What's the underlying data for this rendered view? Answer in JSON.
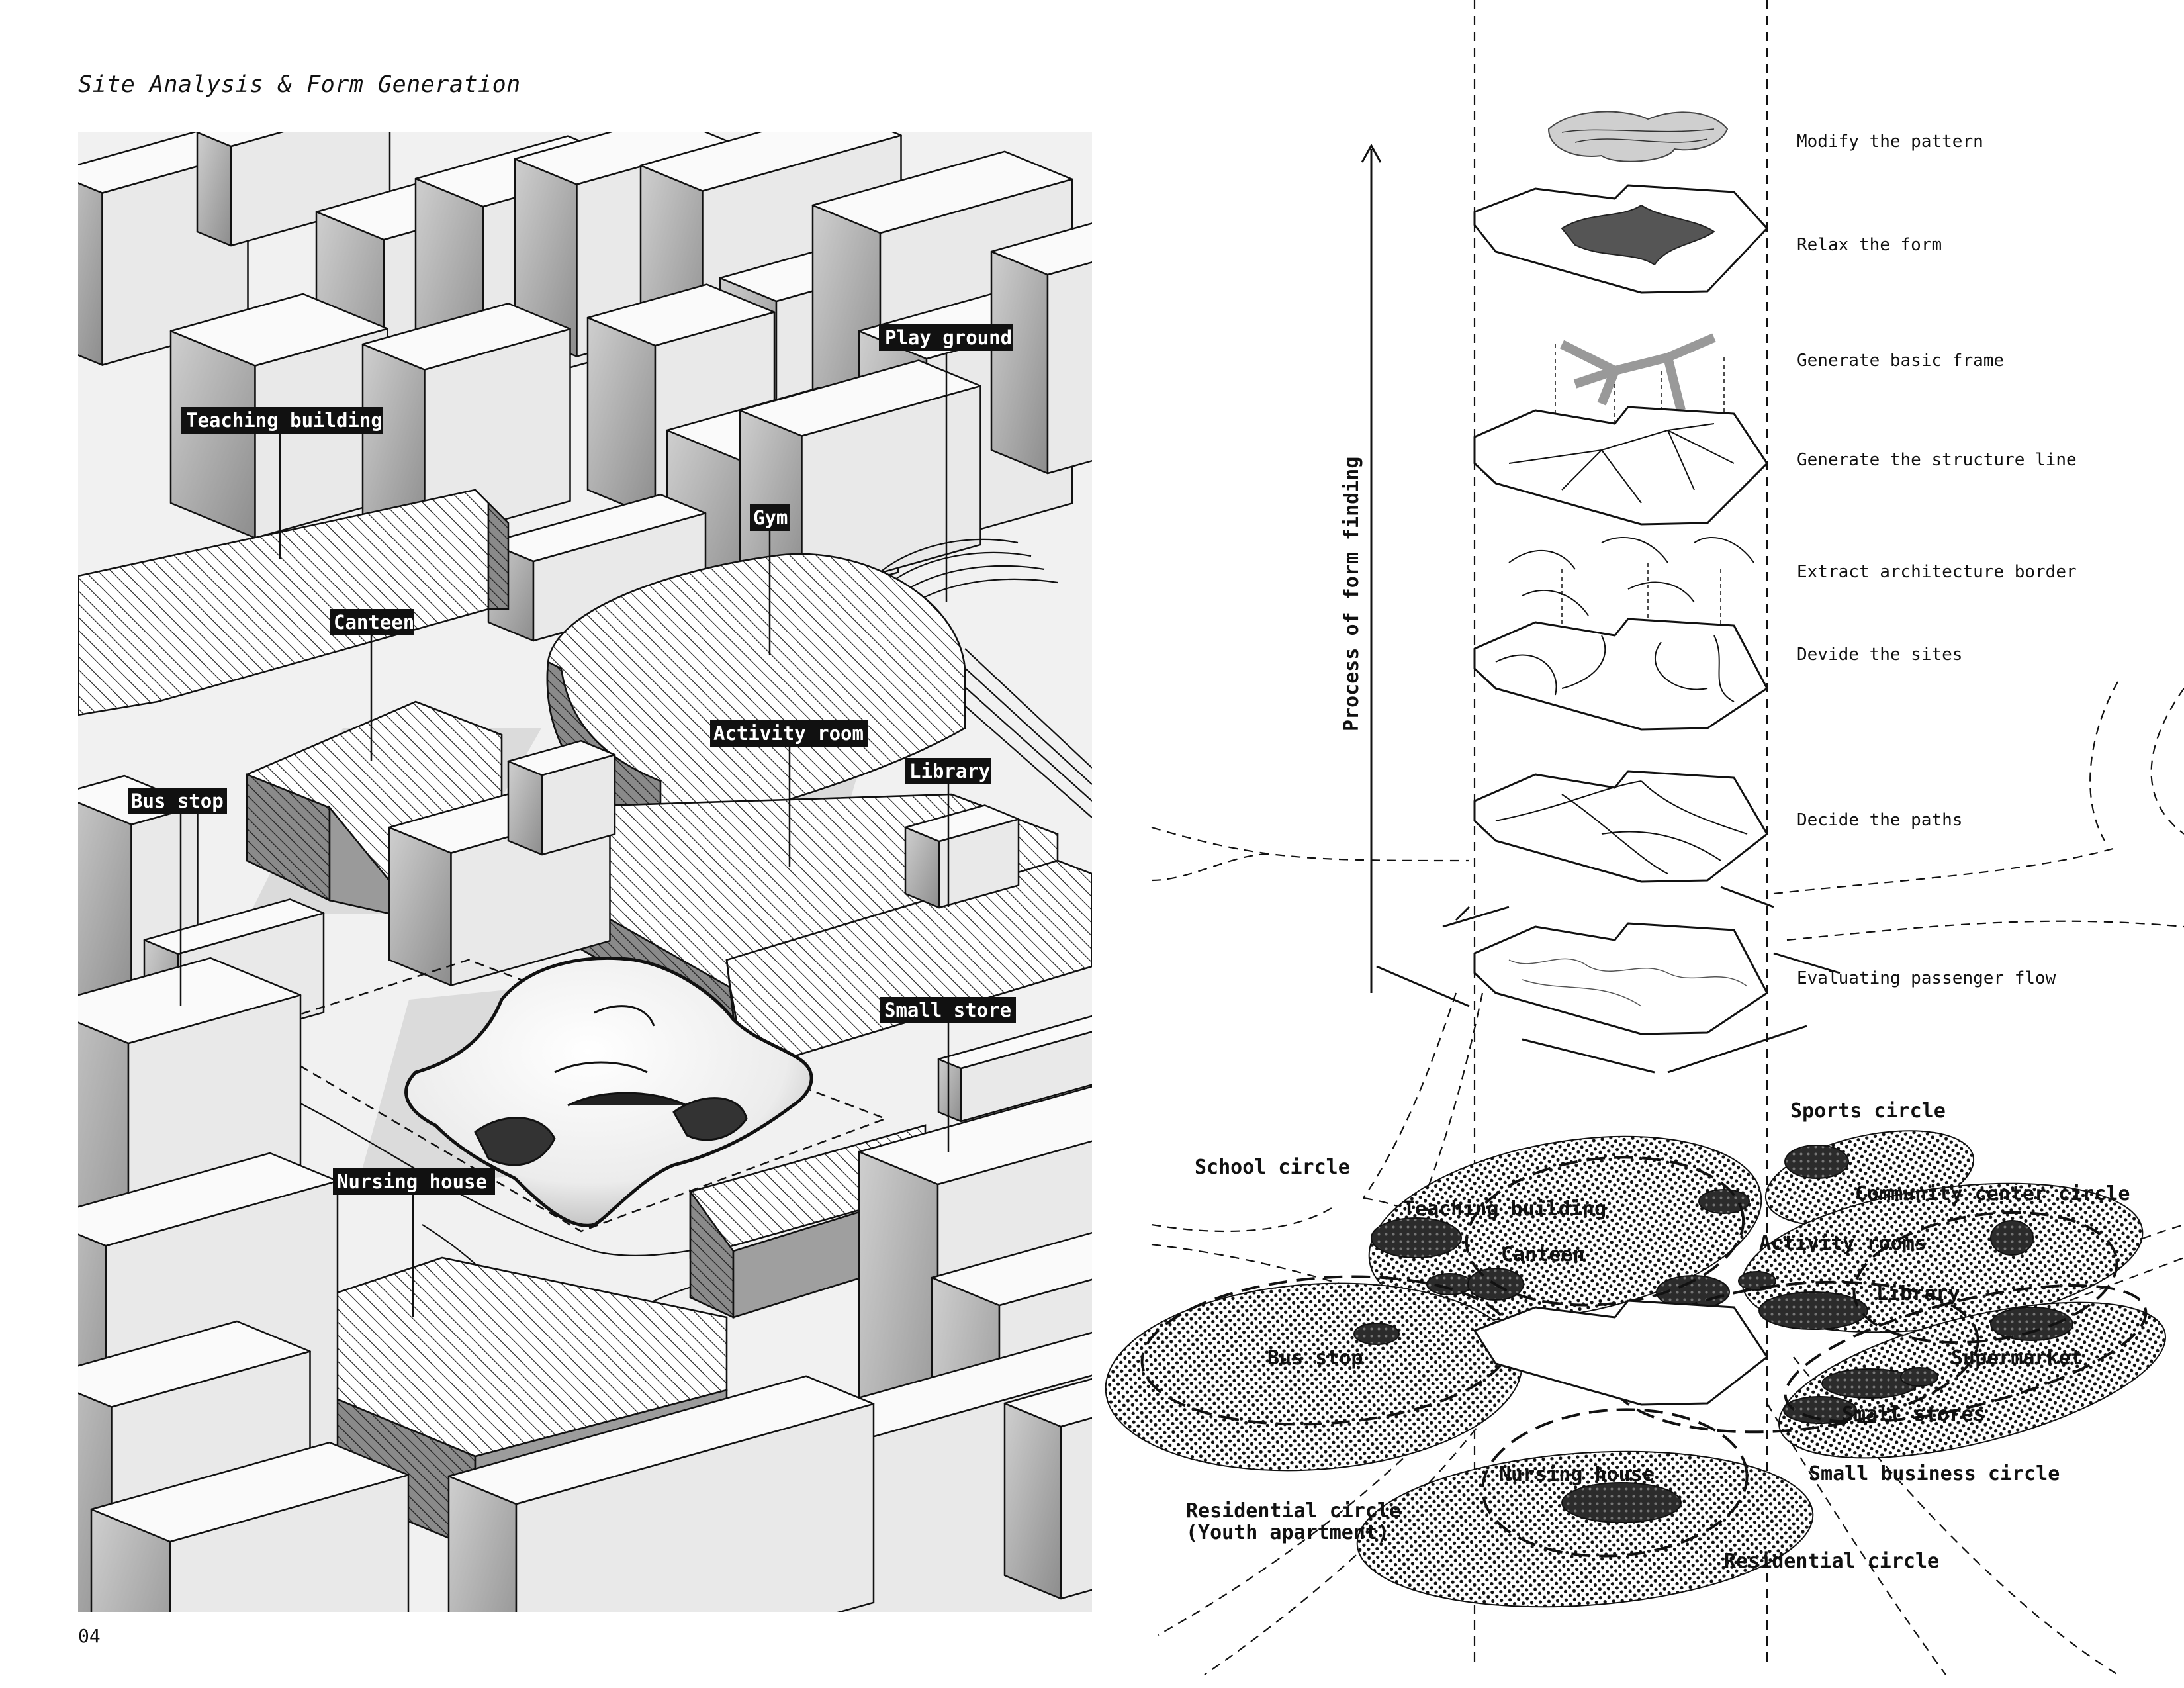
{
  "page": {
    "title": "Site Analysis & Form Generation",
    "page_number": "04"
  },
  "site_labels": {
    "play_ground": "Play ground",
    "teaching_building": "Teaching building",
    "gym": "Gym",
    "canteen": "Canteen",
    "activity_room": "Activity room",
    "library": "Library",
    "bus_stop": "Bus stop",
    "small_store": "Small store",
    "nursing_house": "Nursing house"
  },
  "process": {
    "axis_label": "Process of form finding",
    "steps": [
      "Modify the pattern",
      "Relax the form",
      "Generate basic frame",
      "Generate the structure line",
      "Extract architecture border",
      "Devide the sites",
      "Decide the paths",
      "Evaluating passenger flow"
    ]
  },
  "circles": {
    "sports": "Sports circle",
    "school": "School circle",
    "community": "Community center circle",
    "teaching_building": "Teaching building",
    "canteen": "Canteen",
    "activity_rooms": "Activity rooms",
    "library": "Library",
    "bus_stop": "Bus stop",
    "supermarket": "Supermarket",
    "small_stores": "Small stores",
    "small_business": "Small business circle",
    "nursing_house": "Nursing house",
    "residential_youth_line1": "Residential circle",
    "residential_youth_line2": "(Youth apartment)",
    "residential": "Residential circle"
  }
}
